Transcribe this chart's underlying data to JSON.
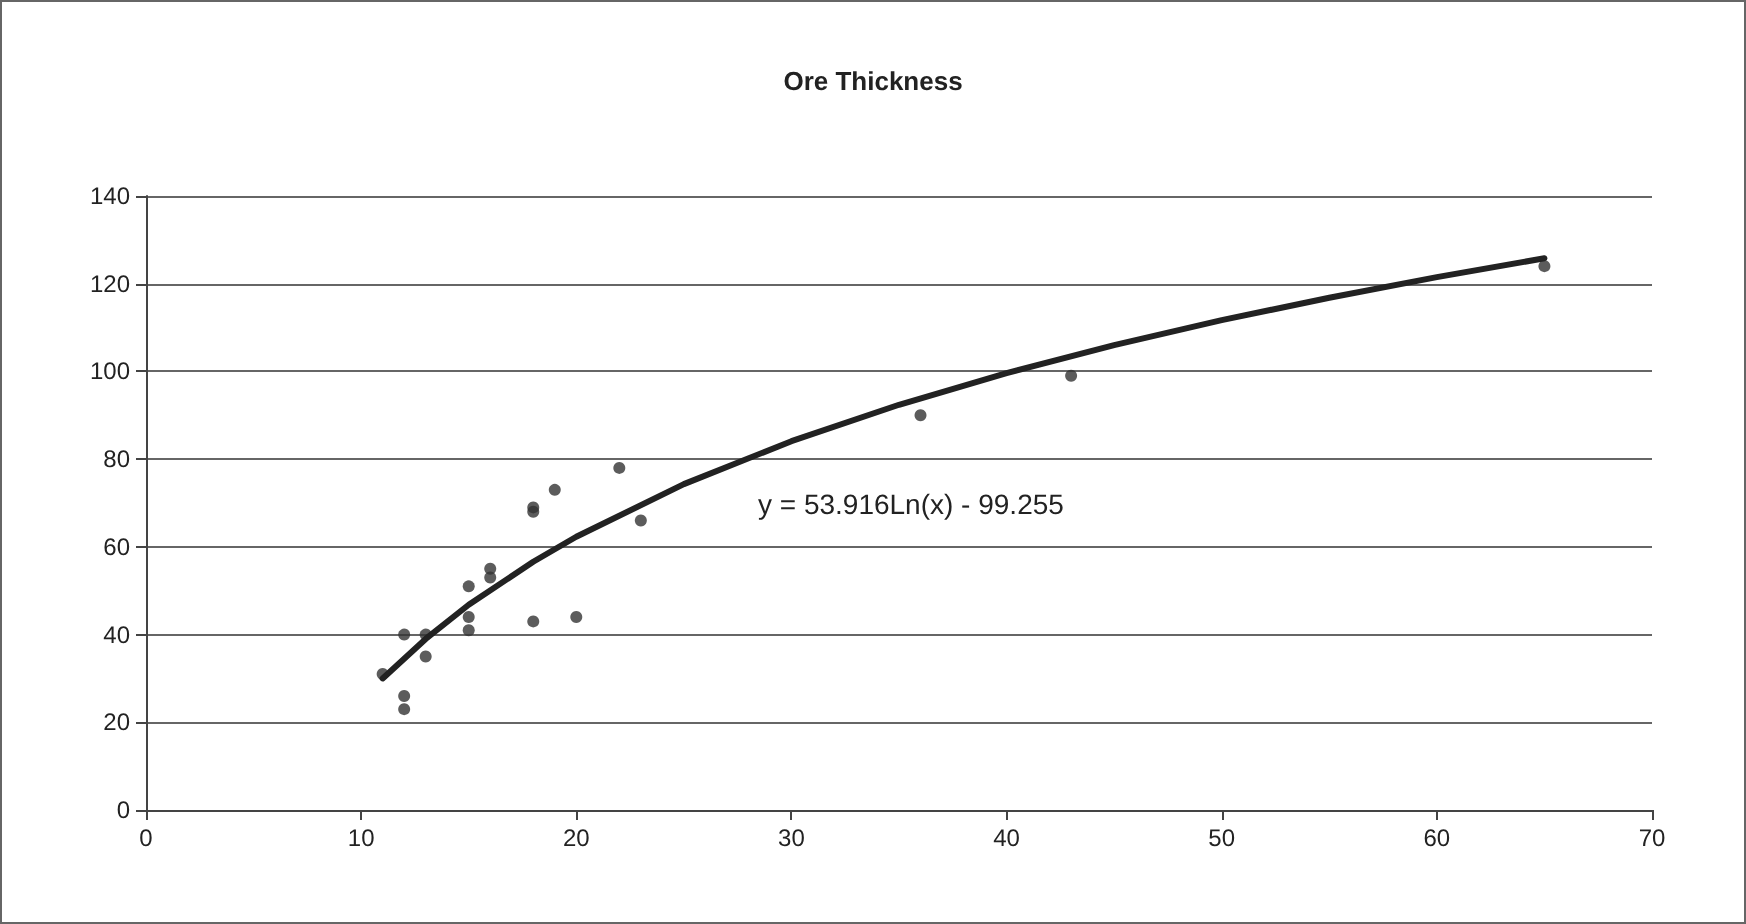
{
  "chart_data": {
    "type": "scatter",
    "title": "Ore Thickness",
    "series": [
      {
        "marker": "circle",
        "color": "#333333",
        "x": [
          11,
          12,
          12,
          12,
          13,
          13,
          15,
          15,
          15,
          16,
          16,
          18,
          18,
          18,
          19,
          20,
          22,
          23,
          36,
          43,
          65
        ],
        "values": [
          31,
          40,
          26,
          23,
          35,
          40,
          51,
          44,
          41,
          55,
          53,
          69,
          68,
          43,
          73,
          44,
          78,
          66,
          90,
          99,
          124
        ]
      },
      {
        "type": "line",
        "marker": "none",
        "color": "#222222",
        "x": [
          11,
          13,
          15,
          18,
          20,
          25,
          30,
          35,
          40,
          45,
          50,
          55,
          60,
          65
        ],
        "values": [
          30.0,
          39.0,
          46.8,
          56.6,
          62.3,
          74.3,
          84.1,
          92.4,
          99.6,
          106.0,
          111.7,
          116.8,
          121.5,
          125.8
        ]
      }
    ],
    "annotations": [
      "y = 53.916Ln(x) - 99.255"
    ],
    "xlim": [
      0,
      70
    ],
    "xticks": [
      0,
      10,
      20,
      30,
      40,
      50,
      60,
      70
    ],
    "ylim": [
      0,
      140
    ],
    "yticks": [
      0,
      20,
      40,
      60,
      80,
      100,
      120,
      140
    ],
    "grid": "y"
  }
}
